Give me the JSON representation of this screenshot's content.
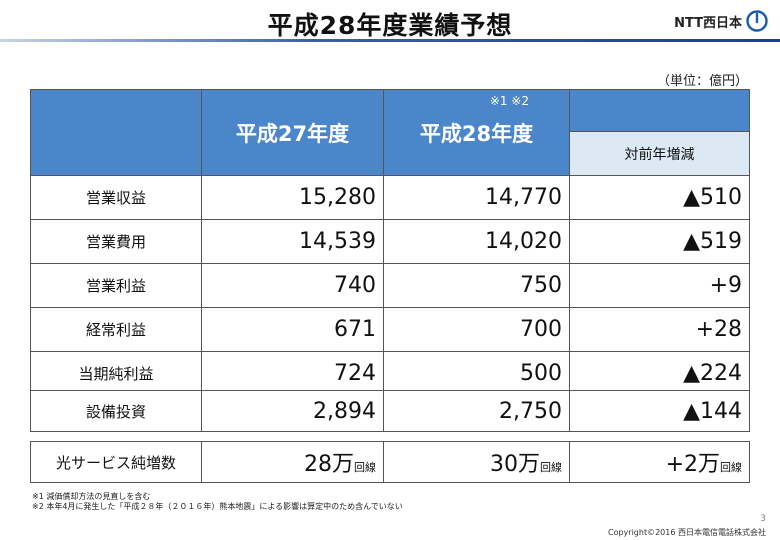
{
  "title": "平成28年度業績予想",
  "logo": {
    "text": "NTT西日本"
  },
  "unit_note": "（単位：億円）",
  "table": {
    "col_fy27": "平成27年度",
    "col_fy28": "平成28年度",
    "col_fy28_notes": "※1 ※2",
    "col_change": "対前年増減",
    "rows": [
      {
        "label": "営業収益",
        "fy27": "15,280",
        "fy28": "14,770",
        "change": "▲510"
      },
      {
        "label": "営業費用",
        "fy27": "14,539",
        "fy28": "14,020",
        "change": "▲519"
      },
      {
        "label": "営業利益",
        "fy27": "740",
        "fy28": "750",
        "change": "+9"
      },
      {
        "label": "経常利益",
        "fy27": "671",
        "fy28": "700",
        "change": "+28"
      },
      {
        "label": "当期純利益",
        "fy27": "724",
        "fy28": "500",
        "change": "▲224"
      }
    ],
    "capex": {
      "label": "設備投資",
      "fy27": "2,894",
      "fy28": "2,750",
      "change": "▲144"
    },
    "fiber": {
      "label": "光サービス純増数",
      "fy27": "28万",
      "fy28": "30万",
      "change": "+2万",
      "unit": "回線"
    }
  },
  "footnotes": [
    "※1 減価償却方法の見直しを含む",
    "※2 本年4月に発生した「平成２８年（２０１６年）熊本地震」による影響は算定中のため含んでいない"
  ],
  "page_number": "3",
  "copyright": "Copyright©2016  西日本電信電話株式会社",
  "colors": {
    "header_blue": "#4a86c9",
    "subheader": "#dce9f5",
    "logo_blue": "#1a5bb0"
  }
}
